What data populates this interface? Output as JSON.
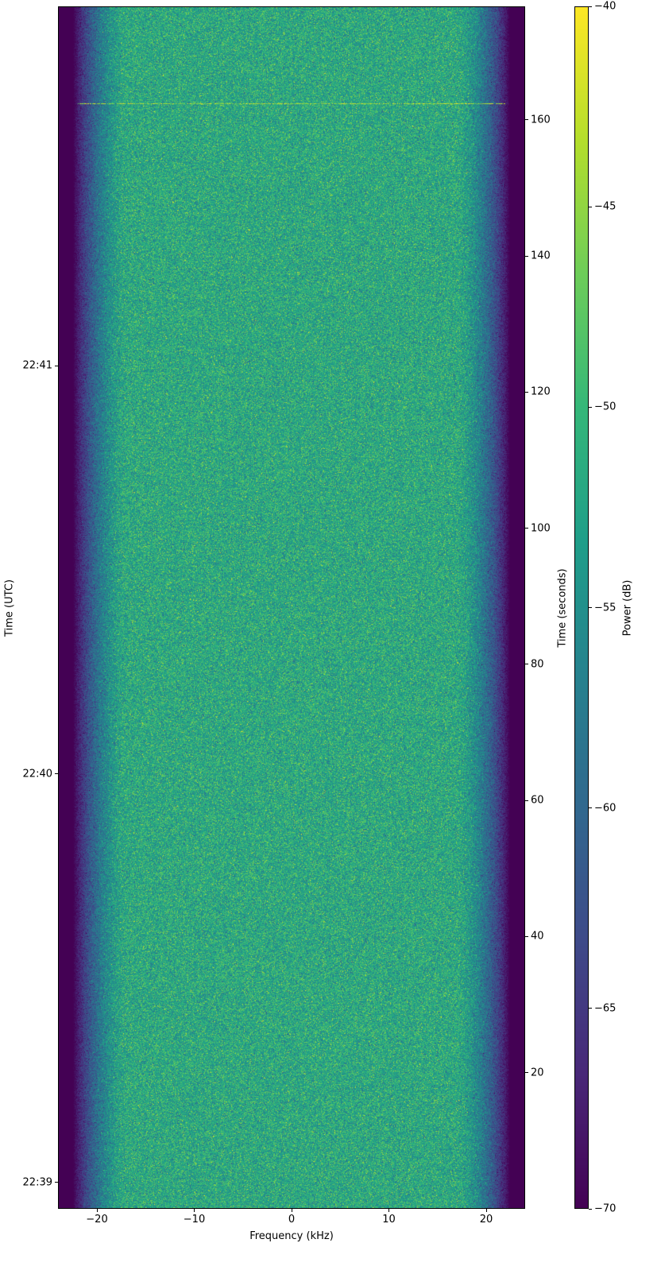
{
  "chart_data": {
    "type": "heatmap",
    "colormap": "viridis",
    "xlabel": "Frequency (kHz)",
    "ylabel_left": "Time (UTC)",
    "ylabel_right": "Time (seconds)",
    "colorbar_label": "Power (dB)",
    "xlim": [
      -24,
      24
    ],
    "ylim_seconds": [
      0,
      176.7
    ],
    "clim": [
      -70,
      -40
    ],
    "x_ticks": [
      -20,
      -10,
      0,
      10,
      20
    ],
    "x_tick_labels": [
      "−20",
      "−10",
      "0",
      "10",
      "20"
    ],
    "y_right_ticks": [
      20,
      40,
      60,
      80,
      100,
      120,
      140,
      160
    ],
    "y_left_ticks_seconds": [
      3.9,
      63.9,
      123.9
    ],
    "y_left_tick_labels": [
      "22:39",
      "22:40",
      "22:41"
    ],
    "colorbar_ticks": [
      -70,
      -65,
      -60,
      -55,
      -50,
      -45,
      -40
    ],
    "colorbar_tick_labels": [
      "−70",
      "−65",
      "−60",
      "−55",
      "−50",
      "−45",
      "−40"
    ],
    "noise_floor_db": -70,
    "passband_kHz": [
      -20,
      20
    ],
    "passband_mean_db": -52,
    "transient_line_seconds": 162.4
  }
}
